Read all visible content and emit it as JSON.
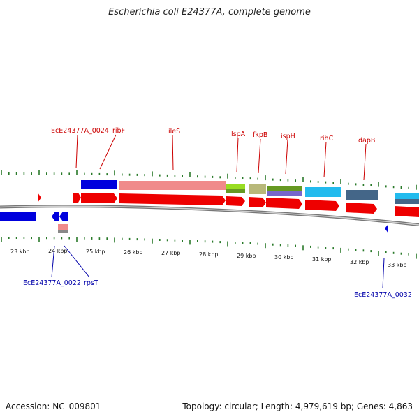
{
  "title": "Escherichia coli E24377A, complete genome",
  "footer": {
    "accession": "Accession: NC_009801",
    "topology": "Topology: circular; Length: 4,979,619 bp; Genes: 4,863"
  },
  "colors": {
    "forward_cds": "#ee0000",
    "reverse_cds": "#0000dd",
    "forward_label": "#cc0000",
    "reverse_label": "#0000aa",
    "backbone": "#888888",
    "ticks": "#2a7a2a"
  },
  "scale_labels": [
    "23 kbp",
    "24 kbp",
    "25 kbp",
    "26 kbp",
    "27 kbp",
    "28 kbp",
    "29 kbp",
    "30 kbp",
    "31 kbp",
    "32 kbp",
    "33 kbp"
  ],
  "forward_gene_labels": [
    "EcE24377A_0024",
    "ribF",
    "ileS",
    "lspA",
    "fkpB",
    "ispH",
    "rihC",
    "dapB"
  ],
  "reverse_gene_labels": [
    "EcE24377A_0022",
    "rpsT",
    "EcE24377A_0032"
  ]
}
